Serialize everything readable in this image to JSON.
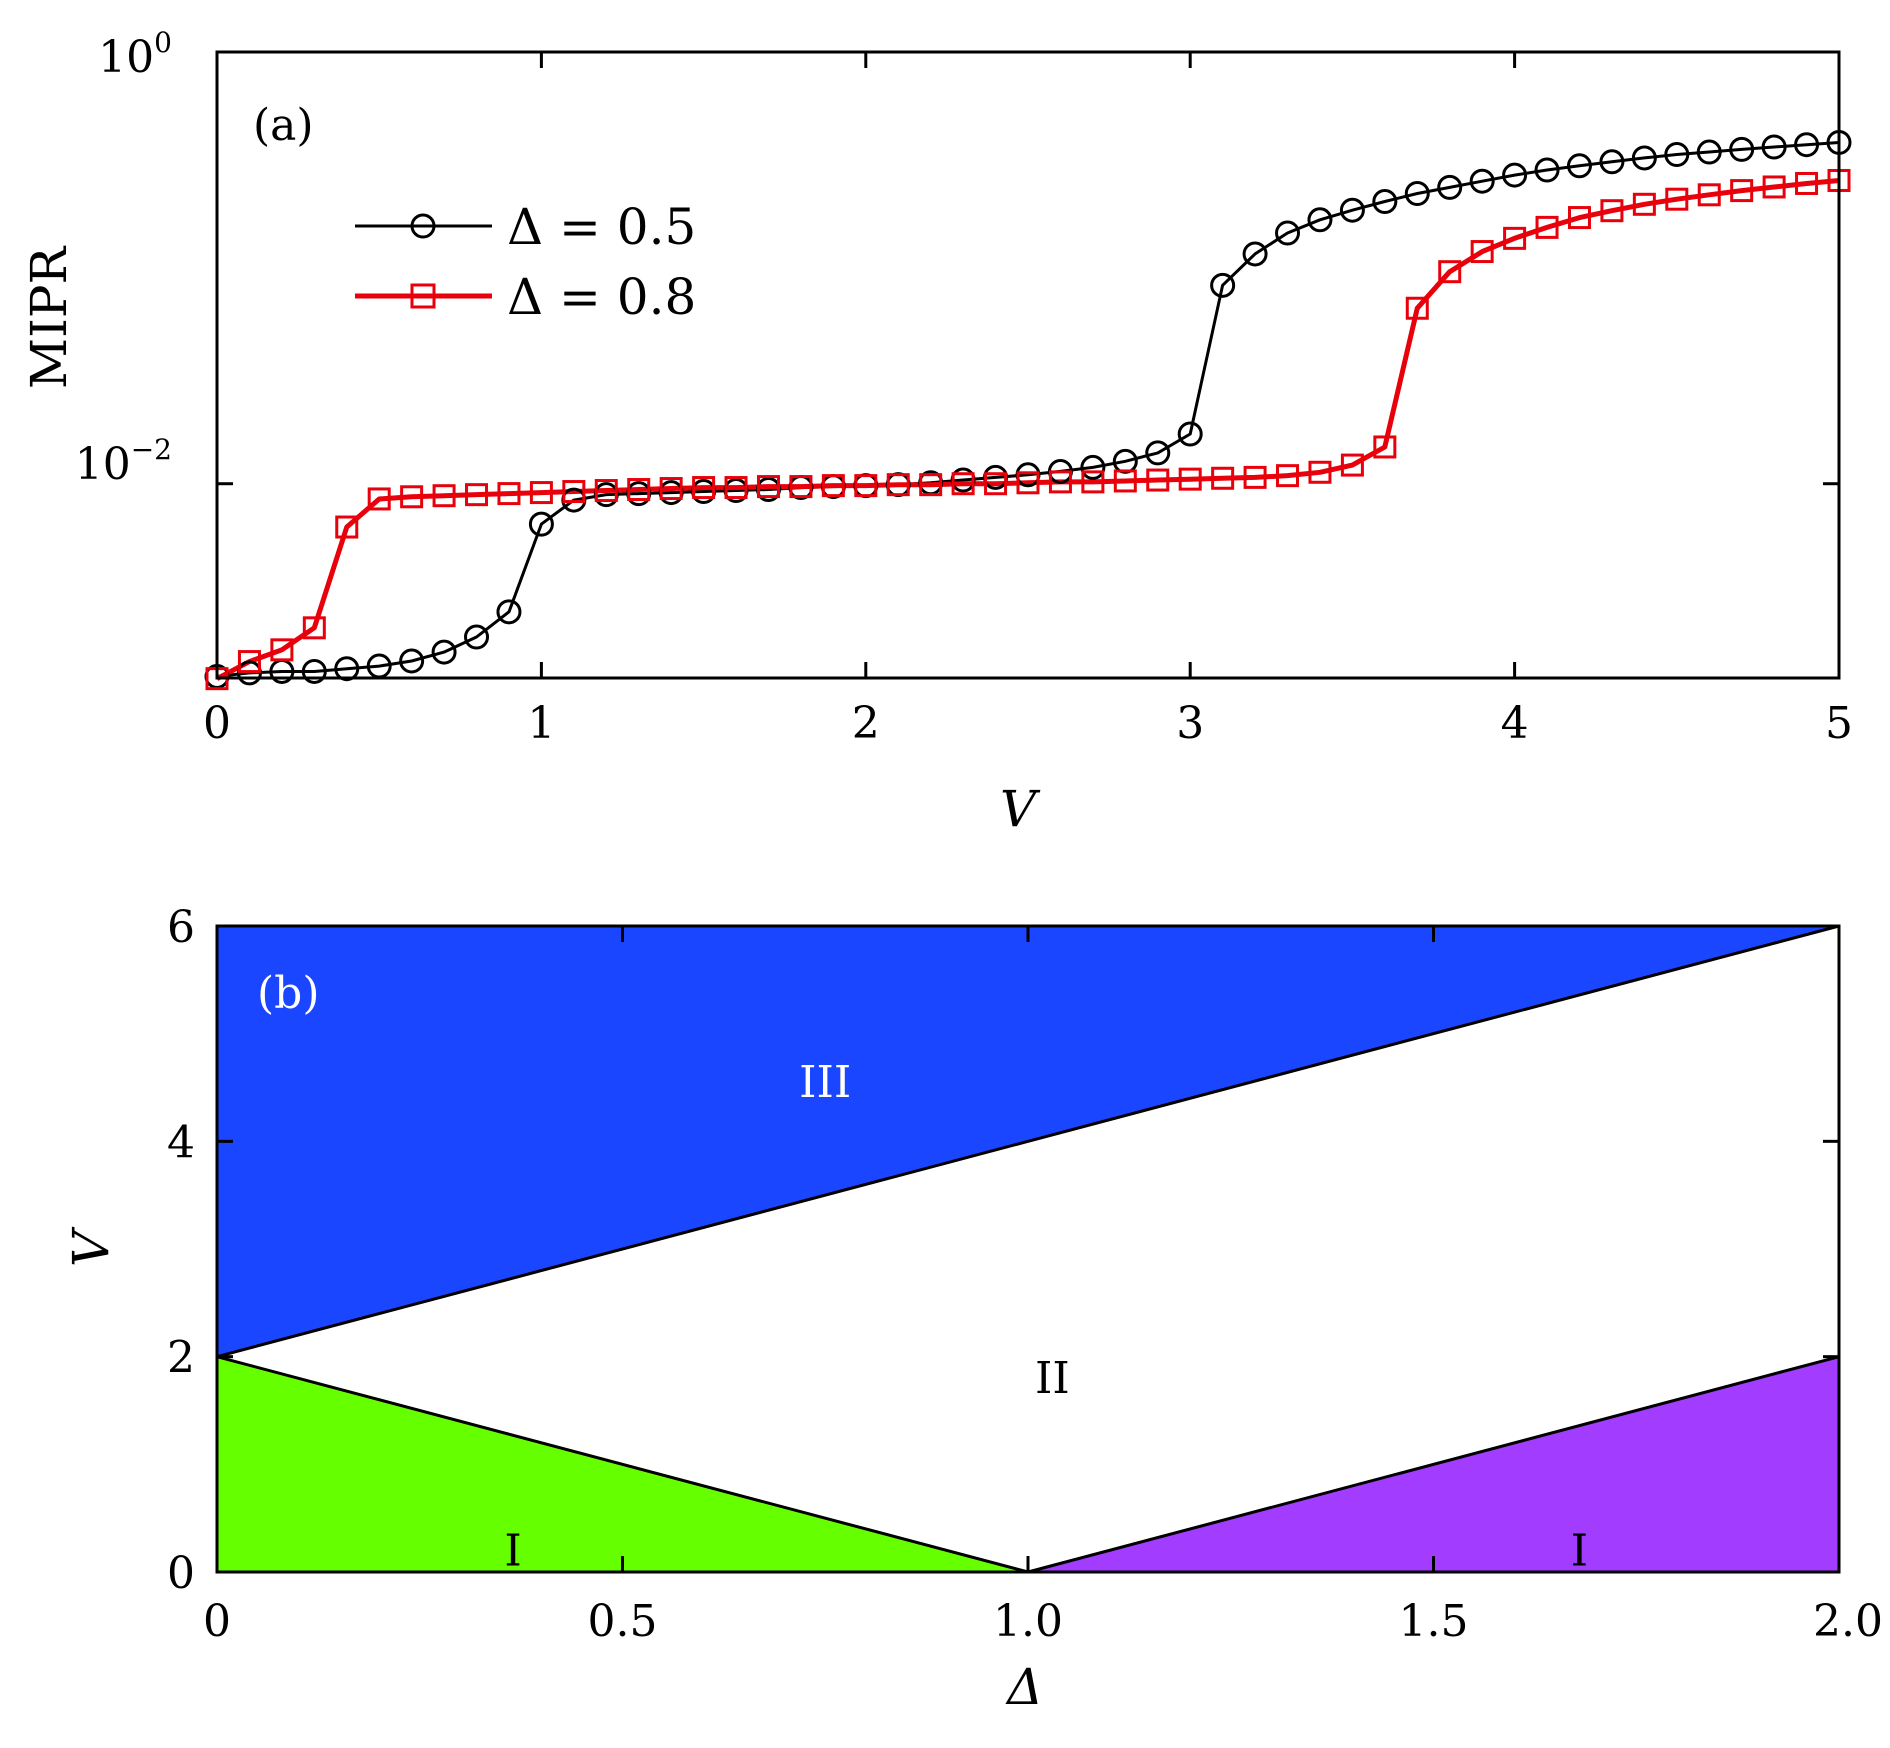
{
  "chart_data": [
    {
      "type": "line",
      "panel_label": "(a)",
      "xlabel": "V",
      "ylabel": "MIPR",
      "xlim": [
        0,
        5
      ],
      "ylim_log10": [
        -2.9,
        0
      ],
      "yscale": "log",
      "xticks": [
        "0",
        "1",
        "2",
        "3",
        "4",
        "5"
      ],
      "xtick_values": [
        0,
        1,
        2,
        3,
        4,
        5
      ],
      "yticks": [
        {
          "base": "10",
          "exp": "0",
          "value": 1
        },
        {
          "base": "10",
          "exp": "−2",
          "value": 0.01
        }
      ],
      "legend_position": "upper-left",
      "x": [
        0,
        0.1,
        0.2,
        0.3,
        0.4,
        0.5,
        0.6,
        0.7,
        0.8,
        0.9,
        1.0,
        1.1,
        1.2,
        1.3,
        1.4,
        1.5,
        1.6,
        1.7,
        1.8,
        1.9,
        2.0,
        2.1,
        2.2,
        2.3,
        2.4,
        2.5,
        2.6,
        2.7,
        2.8,
        2.9,
        3.0,
        3.1,
        3.2,
        3.3,
        3.4,
        3.5,
        3.6,
        3.7,
        3.8,
        3.9,
        4.0,
        4.1,
        4.2,
        4.3,
        4.4,
        4.5,
        4.6,
        4.7,
        4.8,
        4.9,
        5.0
      ],
      "series": [
        {
          "name": "Δ = 0.5",
          "color": "#000000",
          "marker": "circle",
          "values": [
            0.00128,
            0.00133,
            0.00135,
            0.00135,
            0.00139,
            0.00143,
            0.00151,
            0.00166,
            0.00195,
            0.00255,
            0.0065,
            0.0084,
            0.0089,
            0.009,
            0.0091,
            0.0092,
            0.0093,
            0.0094,
            0.0096,
            0.0097,
            0.0098,
            0.0099,
            0.0101,
            0.0104,
            0.0107,
            0.011,
            0.0114,
            0.0119,
            0.0127,
            0.0139,
            0.017,
            0.083,
            0.116,
            0.145,
            0.167,
            0.185,
            0.203,
            0.221,
            0.236,
            0.252,
            0.269,
            0.284,
            0.297,
            0.31,
            0.323,
            0.335,
            0.344,
            0.354,
            0.363,
            0.372,
            0.381
          ]
        },
        {
          "name": "Δ = 0.8",
          "color": "#e8000b",
          "marker": "square",
          "values": [
            0.00125,
            0.0015,
            0.0017,
            0.00215,
            0.0063,
            0.0085,
            0.0087,
            0.0088,
            0.0089,
            0.009,
            0.0091,
            0.0092,
            0.0093,
            0.0094,
            0.0095,
            0.0096,
            0.0096,
            0.0097,
            0.0097,
            0.0098,
            0.0098,
            0.0099,
            0.0099,
            0.01,
            0.01,
            0.0101,
            0.0102,
            0.0102,
            0.0103,
            0.0104,
            0.0105,
            0.0106,
            0.0107,
            0.0109,
            0.0113,
            0.0122,
            0.0148,
            0.065,
            0.096,
            0.119,
            0.137,
            0.154,
            0.171,
            0.184,
            0.197,
            0.208,
            0.218,
            0.228,
            0.237,
            0.246,
            0.254
          ]
        }
      ]
    },
    {
      "type": "area",
      "panel_label": "(b)",
      "xlabel": "Δ",
      "ylabel": "V",
      "xlim": [
        0,
        2
      ],
      "ylim": [
        0,
        6
      ],
      "xticks": [
        "0",
        "0.5",
        "1.0",
        "1.5",
        "2.0"
      ],
      "xtick_values": [
        0,
        0.5,
        1.0,
        1.5,
        2.0
      ],
      "yticks": [
        "0",
        "2",
        "4",
        "6"
      ],
      "ytick_values": [
        0,
        2,
        4,
        6
      ],
      "regions": [
        {
          "label": "III",
          "color": "#1a46ff",
          "label_color": "#ffffff",
          "label_at": [
            0.75,
            4.55
          ],
          "polygon": [
            [
              0,
              2
            ],
            [
              0,
              6
            ],
            [
              2,
              6
            ]
          ]
        },
        {
          "label": "II",
          "color": "#ffffff",
          "label_color": "#000000",
          "label_at": [
            1.03,
            1.8
          ],
          "polygon": [
            [
              0,
              2
            ],
            [
              2,
              6
            ],
            [
              2,
              2
            ],
            [
              1,
              0
            ]
          ]
        },
        {
          "label": "I",
          "color": "#66ff00",
          "label_color": "#000000",
          "label_at": [
            0.365,
            0.2
          ],
          "polygon": [
            [
              0,
              0
            ],
            [
              0,
              2
            ],
            [
              1,
              0
            ]
          ]
        },
        {
          "label": "I",
          "color": "#a23cff",
          "label_color": "#000000",
          "label_at": [
            1.68,
            0.2
          ],
          "polygon": [
            [
              1,
              0
            ],
            [
              2,
              2
            ],
            [
              2,
              0
            ]
          ]
        }
      ],
      "boundaries": [
        [
          [
            0,
            2
          ],
          [
            2,
            6
          ]
        ],
        [
          [
            0,
            2
          ],
          [
            1,
            0
          ]
        ],
        [
          [
            1,
            0
          ],
          [
            2,
            2
          ]
        ]
      ]
    }
  ]
}
